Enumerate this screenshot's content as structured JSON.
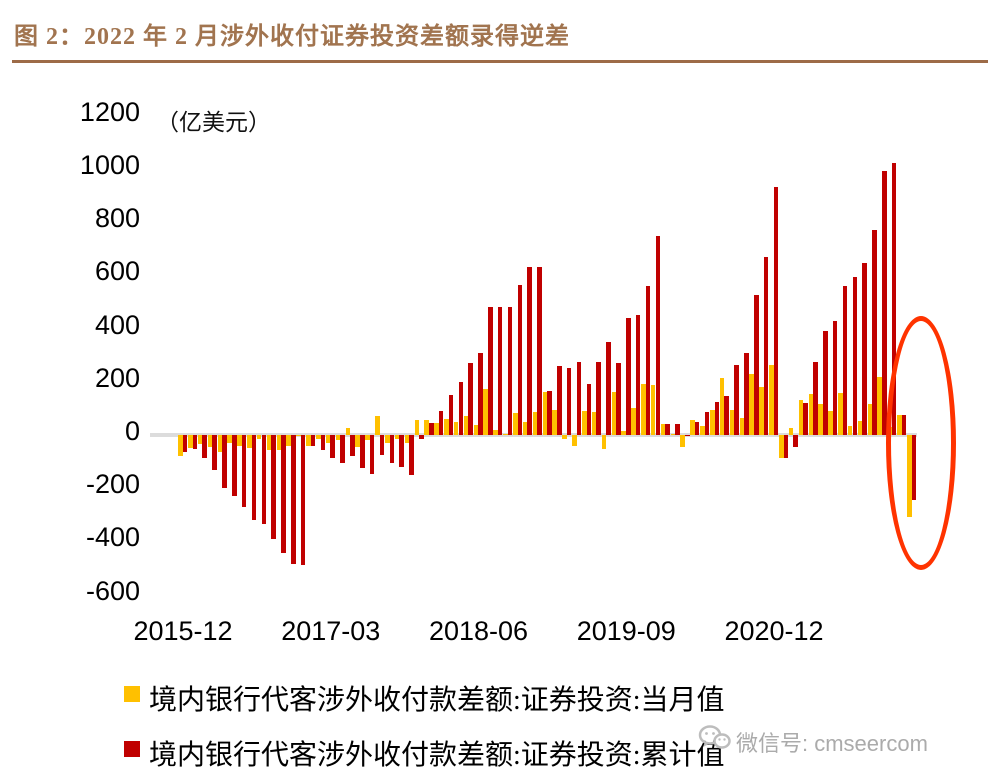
{
  "title": "图 2：2022 年 2 月涉外收付证券投资差额录得逆差",
  "colors": {
    "title_brown": "#A1744F",
    "separator_brown": "#9D6B47",
    "monthly_series": "#FFC000",
    "cumulative_series": "#C00000",
    "zero_axis": "#DCDCDC",
    "annotation_red": "#FF3300",
    "watermark_gray": "#ABABAB"
  },
  "watermark": {
    "label": "微信号: cmseercom"
  },
  "chart_data": {
    "type": "bar",
    "title": "图 2：2022 年 2 月涉外收付证券投资差额录得逆差",
    "unit_label": "（亿美元）",
    "ylabel": "",
    "xlabel": "",
    "ylim": [
      -600,
      1200
    ],
    "ytick_interval": 200,
    "yticks": [
      1200,
      1000,
      800,
      600,
      400,
      200,
      0,
      -200,
      -400,
      -600
    ],
    "xtick_labels": [
      "2015-12",
      "2017-03",
      "2018-06",
      "2019-09",
      "2020-12"
    ],
    "grid": false,
    "legend_position": "bottom",
    "annotation": {
      "shape": "ellipse",
      "highlights": "2022-01 至 2022-02 证券投资差额转为逆差"
    },
    "categories": [
      "2015-12",
      "2016-01",
      "2016-02",
      "2016-03",
      "2016-04",
      "2016-05",
      "2016-06",
      "2016-07",
      "2016-08",
      "2016-09",
      "2016-10",
      "2016-11",
      "2016-12",
      "2017-01",
      "2017-02",
      "2017-03",
      "2017-04",
      "2017-05",
      "2017-06",
      "2017-07",
      "2017-08",
      "2017-09",
      "2017-10",
      "2017-11",
      "2017-12",
      "2018-01",
      "2018-02",
      "2018-03",
      "2018-04",
      "2018-05",
      "2018-06",
      "2018-07",
      "2018-08",
      "2018-09",
      "2018-10",
      "2018-11",
      "2018-12",
      "2019-01",
      "2019-02",
      "2019-03",
      "2019-04",
      "2019-05",
      "2019-06",
      "2019-07",
      "2019-08",
      "2019-09",
      "2019-10",
      "2019-11",
      "2019-12",
      "2020-01",
      "2020-02",
      "2020-03",
      "2020-04",
      "2020-05",
      "2020-06",
      "2020-07",
      "2020-08",
      "2020-09",
      "2020-10",
      "2020-11",
      "2020-12",
      "2021-01",
      "2021-02",
      "2021-03",
      "2021-04",
      "2021-05",
      "2021-06",
      "2021-07",
      "2021-08",
      "2021-09",
      "2021-10",
      "2021-11",
      "2021-12",
      "2022-01",
      "2022-02"
    ],
    "series": [
      {
        "name": "境内银行代客涉外收付款差额:证券投资:当月值",
        "color": "#FFC000",
        "values": [
          -80,
          -50,
          -35,
          -45,
          -65,
          -30,
          -40,
          -50,
          -15,
          -55,
          -55,
          -40,
          -5,
          -40,
          -15,
          -30,
          -20,
          25,
          -45,
          -20,
          70,
          -30,
          -15,
          -30,
          55,
          55,
          45,
          60,
          50,
          72,
          38,
          173,
          20,
          0,
          82,
          50,
          85,
          160,
          95,
          -15,
          -40,
          91,
          85,
          -52,
          160,
          15,
          100,
          193,
          188,
          40,
          0,
          -45,
          55,
          35,
          95,
          213,
          95,
          65,
          230,
          180,
          265,
          -85,
          25,
          130,
          155,
          115,
          90,
          157,
          34,
          52,
          116,
          217,
          30,
          75,
          -310
        ]
      },
      {
        "name": "境内银行代客涉外收付款差额:证券投资:累计值",
        "color": "#C00000",
        "values": [
          -65,
          -52,
          -88,
          -130,
          -200,
          -230,
          -270,
          -320,
          -335,
          -390,
          -445,
          -485,
          -490,
          -40,
          -55,
          -85,
          -105,
          -80,
          -125,
          -145,
          -75,
          -105,
          -120,
          -150,
          -15,
          45,
          90,
          150,
          200,
          272,
          310,
          483,
          483,
          483,
          565,
          632,
          630,
          165,
          260,
          253,
          273,
          193,
          273,
          350,
          270,
          440,
          453,
          560,
          748,
          40,
          40,
          -5,
          50,
          85,
          124,
          146,
          265,
          310,
          528,
          670,
          932,
          -85,
          -45,
          120,
          275,
          390,
          430,
          562,
          595,
          648,
          771,
          992,
          1022,
          75,
          -245
        ]
      }
    ]
  }
}
